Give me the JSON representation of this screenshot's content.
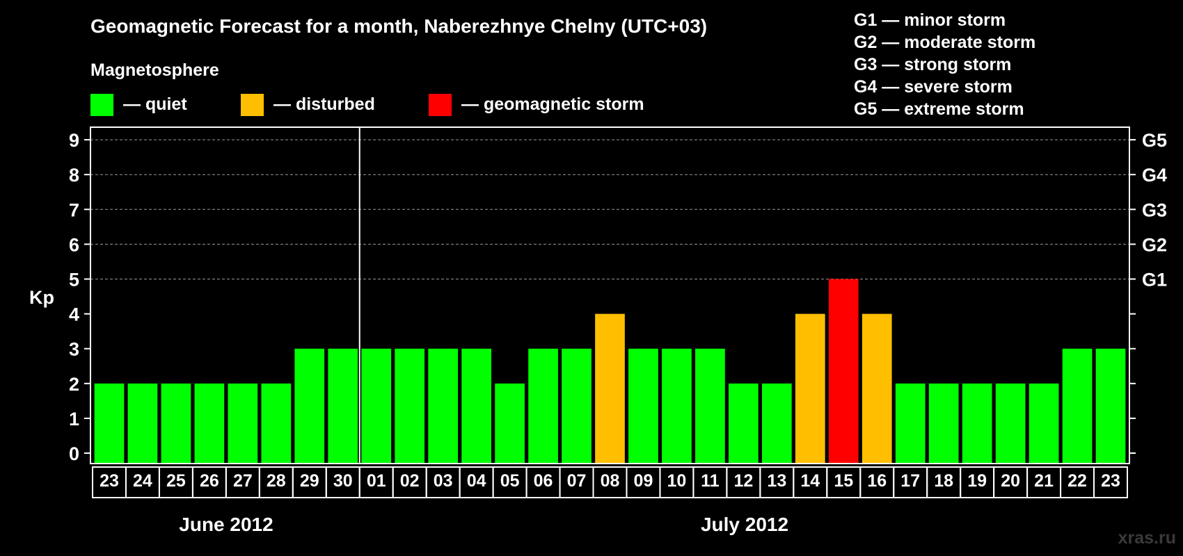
{
  "colors": {
    "background": "#000000",
    "quiet": "#00ff00",
    "disturbed": "#ffbf00",
    "storm": "#ff0000",
    "axis": "#ffffff",
    "grid": "#9a9a9a"
  },
  "chart_data": {
    "type": "bar",
    "title": "Geomagnetic Forecast for a month, Naberezhnye Chelny (UTC+03)",
    "section_label": "Magnetosphere",
    "ylabel": "Kp",
    "ylim": [
      0,
      9
    ],
    "yticks": [
      "0",
      "1",
      "2",
      "3",
      "4",
      "5",
      "6",
      "7",
      "8",
      "9"
    ],
    "legend": [
      {
        "label": "— quiet",
        "color": "#00ff00"
      },
      {
        "label": "— disturbed",
        "color": "#ffbf00"
      },
      {
        "label": "— geomagnetic storm",
        "color": "#ff0000"
      }
    ],
    "storm_scale": [
      "G1 — minor storm",
      "G2 — moderate storm",
      "G3 — strong storm",
      "G4 — severe storm",
      "G5 — extreme storm"
    ],
    "right_axis_labels": [
      {
        "kp": 5,
        "label": "G1"
      },
      {
        "kp": 6,
        "label": "G2"
      },
      {
        "kp": 7,
        "label": "G3"
      },
      {
        "kp": 8,
        "label": "G4"
      },
      {
        "kp": 9,
        "label": "G5"
      }
    ],
    "categories": [
      "23",
      "24",
      "25",
      "26",
      "27",
      "28",
      "29",
      "30",
      "01",
      "02",
      "03",
      "04",
      "05",
      "06",
      "07",
      "08",
      "09",
      "10",
      "11",
      "12",
      "13",
      "14",
      "15",
      "16",
      "17",
      "18",
      "19",
      "20",
      "21",
      "22",
      "23"
    ],
    "values": [
      2,
      2,
      2,
      2,
      2,
      2,
      3,
      3,
      3,
      3,
      3,
      3,
      2,
      3,
      3,
      4,
      3,
      3,
      3,
      2,
      2,
      4,
      5,
      4,
      2,
      2,
      2,
      2,
      2,
      3,
      3
    ],
    "months": [
      {
        "label": "June 2012",
        "start_index": 0,
        "end_index": 7
      },
      {
        "label": "July 2012",
        "start_index": 8,
        "end_index": 30
      }
    ],
    "grid": true
  },
  "watermark": "xras.ru"
}
